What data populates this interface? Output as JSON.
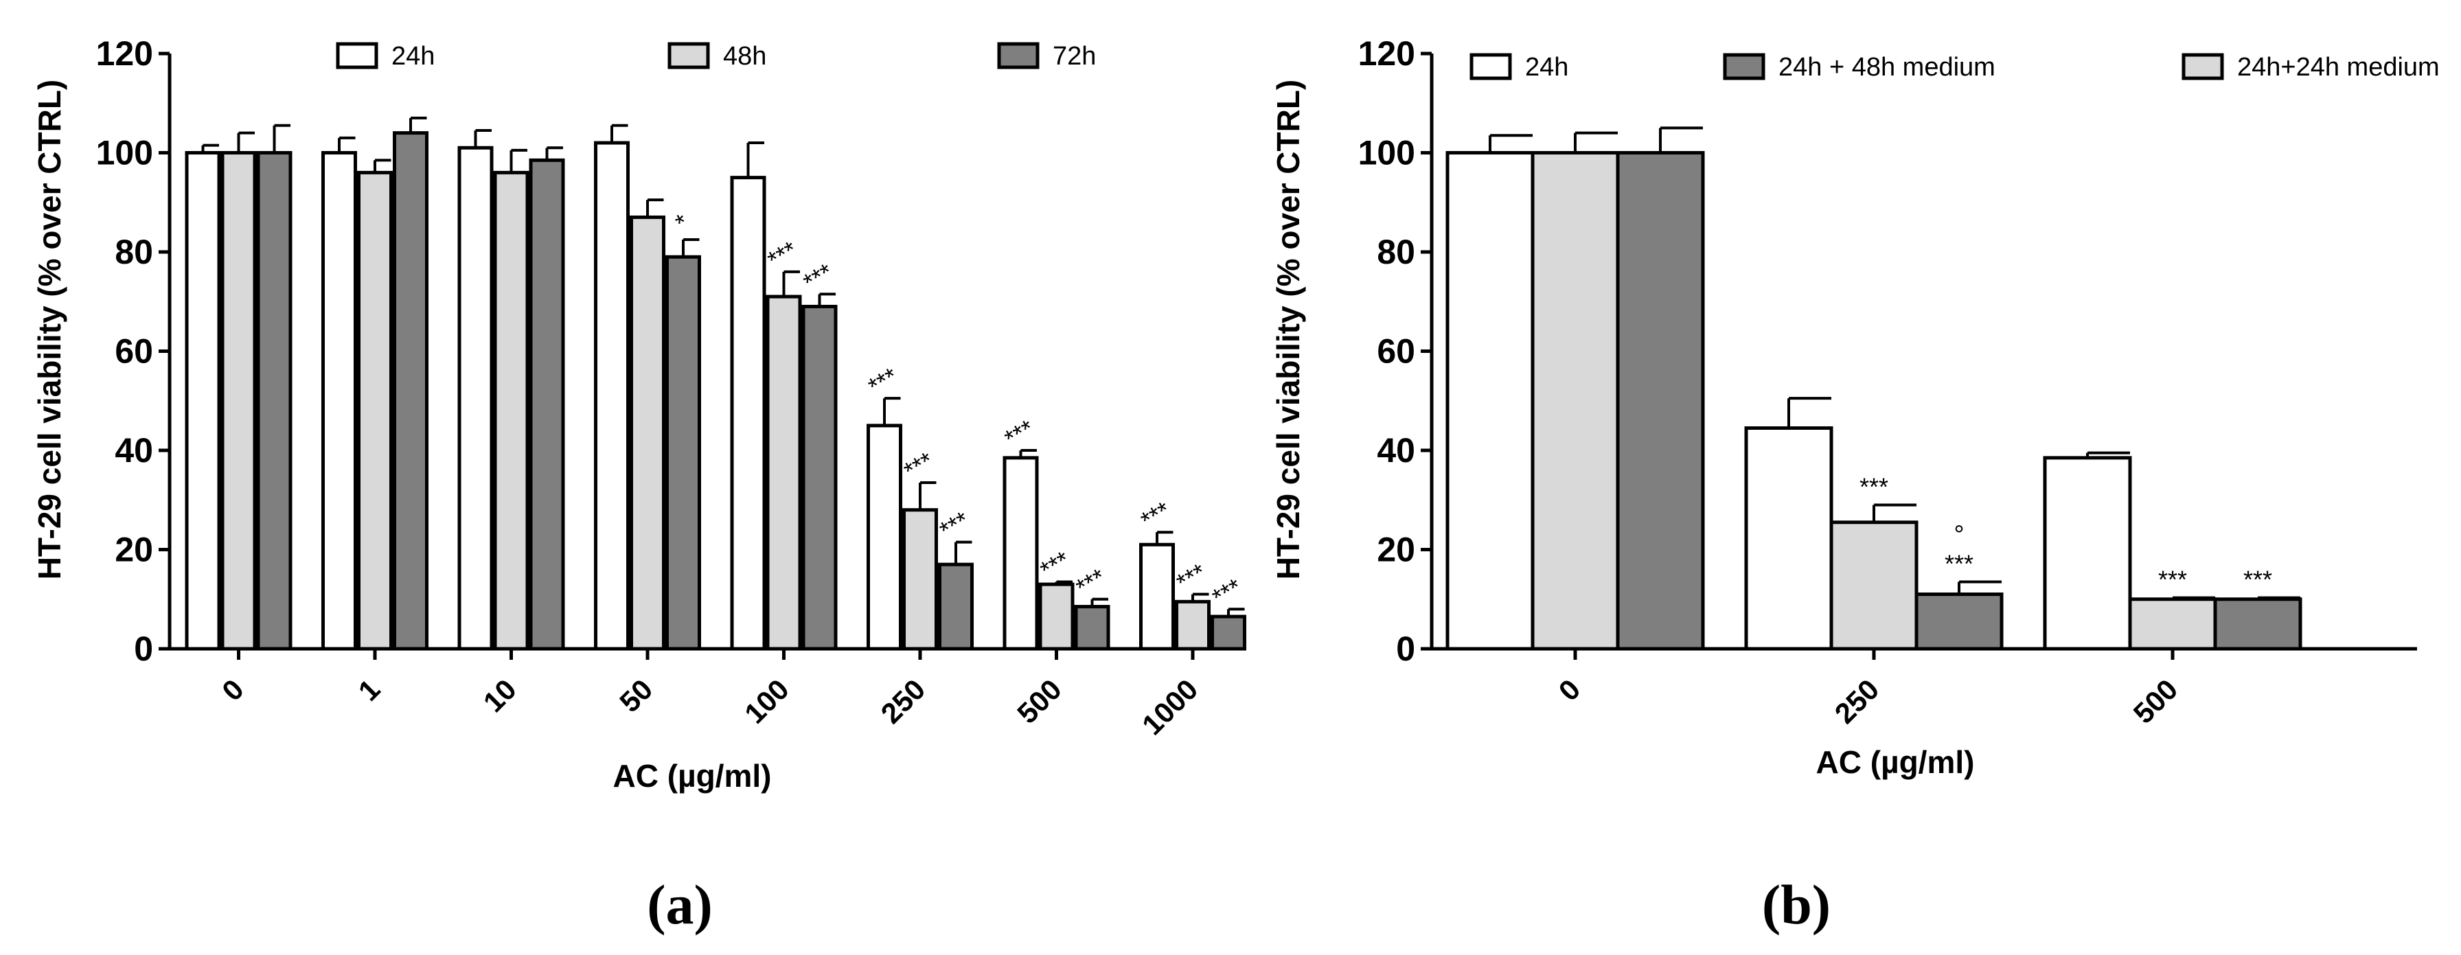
{
  "chart_data": [
    {
      "type": "bar",
      "panel_label": "(a)",
      "xlabel": "AC (µg/ml)",
      "ylabel": "HT-29 cell viability (% over CTRL)",
      "ylim": [
        0,
        120
      ],
      "yticks": [
        0,
        20,
        40,
        60,
        80,
        100,
        120
      ],
      "categories": [
        "0",
        "1",
        "10",
        "50",
        "100",
        "250",
        "500",
        "1000"
      ],
      "legend_position": "top",
      "series": [
        {
          "name": "24h",
          "color": "#ffffff",
          "values": [
            100,
            100,
            101,
            102,
            95,
            45,
            38.5,
            21
          ],
          "errors": [
            1.5,
            3,
            3.5,
            3.5,
            7,
            5.5,
            1.5,
            2.5
          ],
          "annotations": [
            "",
            "",
            "",
            "",
            "",
            "***",
            "***",
            "***"
          ]
        },
        {
          "name": "48h",
          "color": "#d9d9d9",
          "values": [
            100,
            96,
            96,
            87,
            71,
            28,
            13,
            9.5
          ],
          "errors": [
            4,
            2.5,
            4.5,
            3.5,
            5,
            5.5,
            0.5,
            1.5
          ],
          "annotations": [
            "",
            "",
            "",
            "",
            "***",
            "***",
            "***",
            "***"
          ]
        },
        {
          "name": "72h",
          "color": "#7f7f7f",
          "values": [
            100,
            104,
            98.5,
            79,
            69,
            17,
            8.5,
            6.5
          ],
          "errors": [
            5.5,
            3,
            2.5,
            3.5,
            2.5,
            4.5,
            1.5,
            1.5
          ],
          "annotations": [
            "",
            "",
            "",
            "*",
            "***",
            "***",
            "***",
            "***"
          ]
        }
      ]
    },
    {
      "type": "bar",
      "panel_label": "(b)",
      "xlabel": "AC (µg/ml)",
      "ylabel": "HT-29 cell viability (% over CTRL)",
      "ylim": [
        0,
        120
      ],
      "yticks": [
        0,
        20,
        40,
        60,
        80,
        100,
        120
      ],
      "categories": [
        "0",
        "250",
        "500"
      ],
      "legend_position": "top",
      "legend_order": [
        0,
        2,
        1
      ],
      "series": [
        {
          "name": "24h",
          "color": "#ffffff",
          "values": [
            100,
            44.5,
            38.5
          ],
          "errors": [
            3.5,
            6,
            1
          ],
          "annotations": [
            "",
            "",
            ""
          ]
        },
        {
          "name": "24h+24h medium",
          "color": "#d9d9d9",
          "values": [
            100,
            25.5,
            10
          ],
          "errors": [
            4,
            3.5,
            0.3
          ],
          "annotations": [
            "",
            "***",
            "***"
          ]
        },
        {
          "name": "24h + 48h medium",
          "color": "#7f7f7f",
          "values": [
            100,
            11,
            10
          ],
          "errors": [
            5,
            2.5,
            0.3
          ],
          "annotations": [
            "",
            "°\n***",
            "***"
          ]
        }
      ]
    }
  ]
}
